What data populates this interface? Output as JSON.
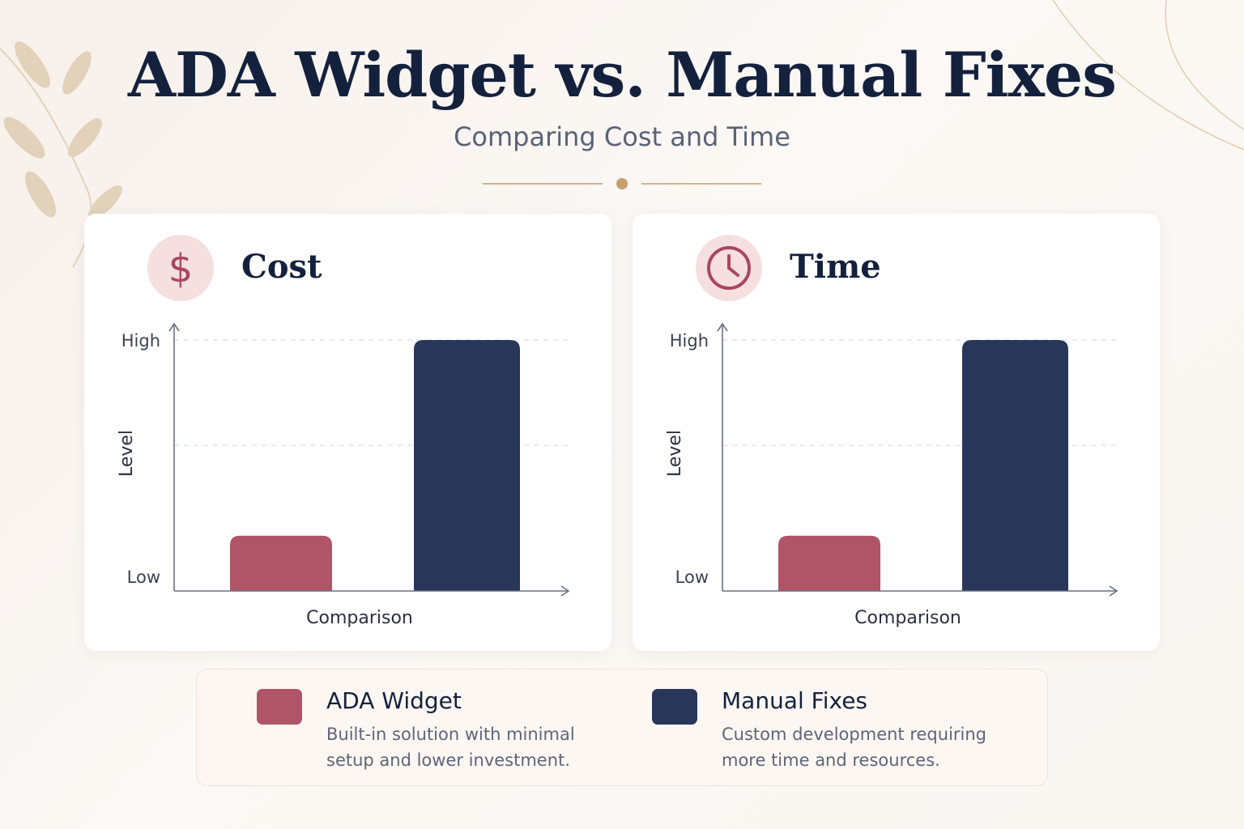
{
  "header": {
    "title": "ADA Widget vs. Manual Fixes",
    "subtitle": "Comparing Cost and Time"
  },
  "colors": {
    "ada": "#b05468",
    "manual": "#283759",
    "title": "#14213d",
    "accent": "#c8a06e"
  },
  "chart_data": [
    {
      "type": "bar",
      "title": "Cost",
      "icon": "dollar-icon",
      "categories": [
        "ADA Widget",
        "Manual Fixes"
      ],
      "values": [
        0.22,
        1.0
      ],
      "ylabel": "Level",
      "xlabel": "Comparison",
      "y_tick_labels": {
        "high": "High",
        "low": "Low"
      },
      "ylim": [
        0,
        1
      ],
      "grid": true
    },
    {
      "type": "bar",
      "title": "Time",
      "icon": "clock-icon",
      "categories": [
        "ADA Widget",
        "Manual Fixes"
      ],
      "values": [
        0.22,
        1.0
      ],
      "ylabel": "Level",
      "xlabel": "Comparison",
      "y_tick_labels": {
        "high": "High",
        "low": "Low"
      },
      "ylim": [
        0,
        1
      ],
      "grid": true
    }
  ],
  "legend": {
    "items": [
      {
        "name": "ADA Widget",
        "description": "Built-in solution with minimal setup and lower investment."
      },
      {
        "name": "Manual Fixes",
        "description": "Custom development requiring more time and resources."
      }
    ]
  }
}
